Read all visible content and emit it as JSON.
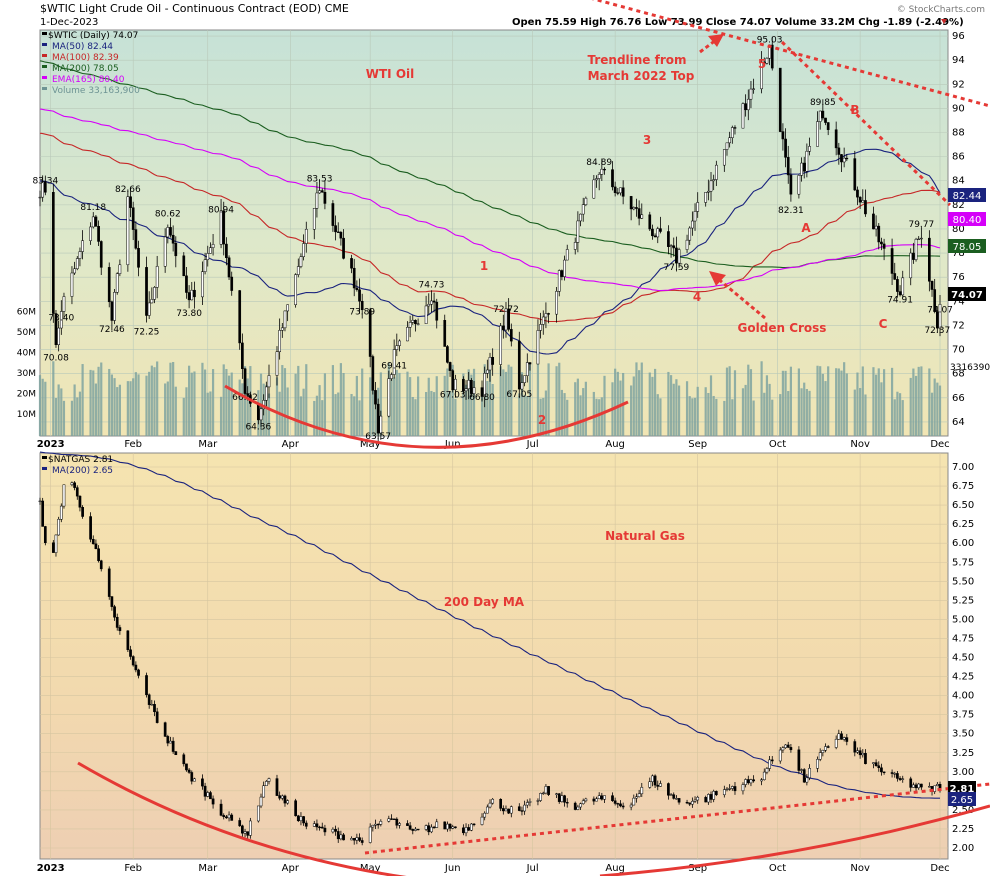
{
  "header": {
    "symbol_line": "$WTIC Light Crude Oil - Continuous Contract (EOD) CME",
    "date": "1-Dec-2023",
    "ohlc": "Open 75.59  High 76.76  Low 73.99  Close 74.07  Volume 33.2M  Chg -1.89 (-2.49%)",
    "watermark": "© StockCharts.com"
  },
  "chart_data": [
    {
      "type": "line",
      "title": "WTI Oil",
      "ylim": [
        62,
        96
      ],
      "yticks": [
        64,
        66,
        68,
        70,
        72,
        74,
        76,
        78,
        80,
        82,
        84,
        86,
        88,
        90,
        92,
        94,
        96
      ],
      "volume_ticks": [
        "10M",
        "20M",
        "30M",
        "40M",
        "50M",
        "60M"
      ],
      "volume_label": "33163900",
      "x_labels": [
        "2023",
        "Feb",
        "Mar",
        "Apr",
        "May",
        "Jun",
        "Jul",
        "Aug",
        "Sep",
        "Oct",
        "Nov",
        "Dec"
      ],
      "legend": [
        {
          "name": "$WTIC (Daily) 74.07",
          "color": "#000000"
        },
        {
          "name": "MA(50) 82.44",
          "color": "#1a237e"
        },
        {
          "name": "MA(100) 82.39",
          "color": "#c62828"
        },
        {
          "name": "MA(200) 78.05",
          "color": "#1b5e20"
        },
        {
          "name": "EMA(165) 80.40",
          "color": "#d500f9"
        },
        {
          "name": "Volume 33,163,900",
          "color": "#6e9494"
        }
      ],
      "price_points": [
        {
          "date": "2022-12-30",
          "value": 83.34
        },
        {
          "date": "2023-01-05",
          "value": 73.4
        },
        {
          "date": "2023-01-03",
          "value": 70.08
        },
        {
          "date": "2023-01-17",
          "value": 81.18
        },
        {
          "date": "2023-01-24",
          "value": 72.46
        },
        {
          "date": "2023-01-30",
          "value": 82.66
        },
        {
          "date": "2023-02-06",
          "value": 72.25
        },
        {
          "date": "2023-02-14",
          "value": 80.62
        },
        {
          "date": "2023-02-22",
          "value": 73.8
        },
        {
          "date": "2023-03-06",
          "value": 80.94
        },
        {
          "date": "2023-03-15",
          "value": 66.82
        },
        {
          "date": "2023-03-20",
          "value": 64.36
        },
        {
          "date": "2023-04-12",
          "value": 83.53
        },
        {
          "date": "2023-04-28",
          "value": 73.89
        },
        {
          "date": "2023-05-04",
          "value": 63.57
        },
        {
          "date": "2023-05-10",
          "value": 69.41
        },
        {
          "date": "2023-05-24",
          "value": 74.73
        },
        {
          "date": "2023-06-01",
          "value": 67.03
        },
        {
          "date": "2023-06-12",
          "value": 66.8
        },
        {
          "date": "2023-06-21",
          "value": 72.72
        },
        {
          "date": "2023-06-26",
          "value": 67.05
        },
        {
          "date": "2023-07-26",
          "value": 84.89
        },
        {
          "date": "2023-08-24",
          "value": 77.59
        },
        {
          "date": "2023-09-28",
          "value": 95.03
        },
        {
          "date": "2023-10-06",
          "value": 82.31
        },
        {
          "date": "2023-10-18",
          "value": 89.85
        },
        {
          "date": "2023-11-16",
          "value": 74.91
        },
        {
          "date": "2023-11-24",
          "value": 79.77
        },
        {
          "date": "2023-11-30",
          "value": 72.37
        },
        {
          "date": "2023-12-01",
          "value": 74.07
        }
      ],
      "last_values": {
        "ma50": "82.44",
        "ema165": "80.40",
        "ma200": "78.05",
        "close": "74.07"
      },
      "annotations": {
        "wave_1": "1",
        "wave_2": "2",
        "wave_3": "3",
        "wave_4": "4",
        "wave_5": "5",
        "wave_a": "A",
        "wave_b": "B",
        "wave_c": "C",
        "trendline_line1": "Trendline from",
        "trendline_line2": "March 2022 Top",
        "golden_cross": "Golden Cross",
        "label_color": "#e53935"
      }
    },
    {
      "type": "line",
      "title": "Natural Gas",
      "ylim": [
        1.8,
        7.2
      ],
      "yticks": [
        "2.00",
        "2.25",
        "2.50",
        "2.75",
        "3.00",
        "3.25",
        "3.50",
        "3.75",
        "4.00",
        "4.25",
        "4.50",
        "4.75",
        "5.00",
        "5.25",
        "5.50",
        "5.75",
        "6.00",
        "6.25",
        "6.50",
        "6.75",
        "7.00"
      ],
      "x_labels": [
        "2023",
        "Feb",
        "Mar",
        "Apr",
        "May",
        "Jun",
        "Jul",
        "Aug",
        "Sep",
        "Oct",
        "Nov",
        "Dec"
      ],
      "legend": [
        {
          "name": "$NATGAS 2.81",
          "color": "#000000"
        },
        {
          "name": "MA(200) 2.65",
          "color": "#1a237e"
        }
      ],
      "last_values": {
        "close": "2.81",
        "ma200": "2.65"
      },
      "annotations": {
        "ma_label": "200 Day MA"
      }
    }
  ]
}
